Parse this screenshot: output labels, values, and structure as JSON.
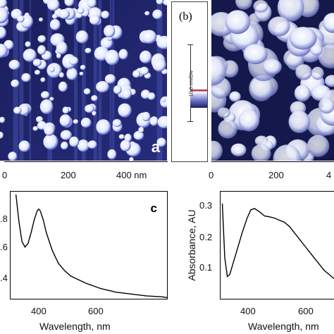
{
  "figure": {
    "panel_a": {
      "tag": "a",
      "x_ticks": [
        "0",
        "200",
        "400 nm"
      ]
    },
    "panel_b": {
      "tag": "(b)",
      "scale_label": "10.0 nm/Div",
      "x_ticks": [
        "0",
        "200",
        "4"
      ]
    },
    "panel_c": {
      "tag": "c",
      "xlabel": "Wavelength, nm",
      "x_ticks": [
        "400",
        "600"
      ],
      "y_ticks": [
        ".8",
        ".6",
        ".4"
      ]
    },
    "panel_d": {
      "ylabel": "Absorbance, AU",
      "xlabel": "Wavelength, nm",
      "x_ticks": [
        "400",
        "600"
      ],
      "y_ticks": [
        "0.3",
        "0.2",
        "0.1"
      ]
    }
  },
  "chart_data": [
    {
      "type": "line",
      "title": "",
      "xlabel": "Wavelength, nm",
      "ylabel": "",
      "xlim": [
        300,
        820
      ],
      "ylim": [
        0.35,
        0.95
      ],
      "series": [
        {
          "x": [
            320,
            330,
            340,
            350,
            360,
            370,
            380,
            390,
            395,
            400,
            410,
            420,
            440,
            460,
            480,
            500,
            550,
            600,
            650,
            700,
            750,
            800,
            820
          ],
          "y": [
            0.93,
            0.78,
            0.67,
            0.64,
            0.66,
            0.72,
            0.79,
            0.84,
            0.85,
            0.84,
            0.79,
            0.72,
            0.62,
            0.55,
            0.51,
            0.48,
            0.44,
            0.41,
            0.39,
            0.38,
            0.37,
            0.365,
            0.36
          ]
        }
      ]
    },
    {
      "type": "line",
      "title": "",
      "xlabel": "Wavelength, nm",
      "ylabel": "Absorbance, AU",
      "xlim": [
        300,
        760
      ],
      "ylim": [
        0.07,
        0.33
      ],
      "series": [
        {
          "x": [
            310,
            320,
            330,
            340,
            350,
            370,
            390,
            410,
            425,
            440,
            460,
            480,
            500,
            520,
            540,
            560,
            580,
            600,
            620,
            640,
            660,
            680,
            700,
            720,
            740,
            760
          ],
          "y": [
            0.3,
            0.17,
            0.125,
            0.13,
            0.15,
            0.19,
            0.23,
            0.265,
            0.285,
            0.288,
            0.28,
            0.27,
            0.268,
            0.265,
            0.26,
            0.255,
            0.245,
            0.23,
            0.215,
            0.2,
            0.185,
            0.17,
            0.155,
            0.14,
            0.13,
            0.12
          ]
        }
      ]
    }
  ]
}
